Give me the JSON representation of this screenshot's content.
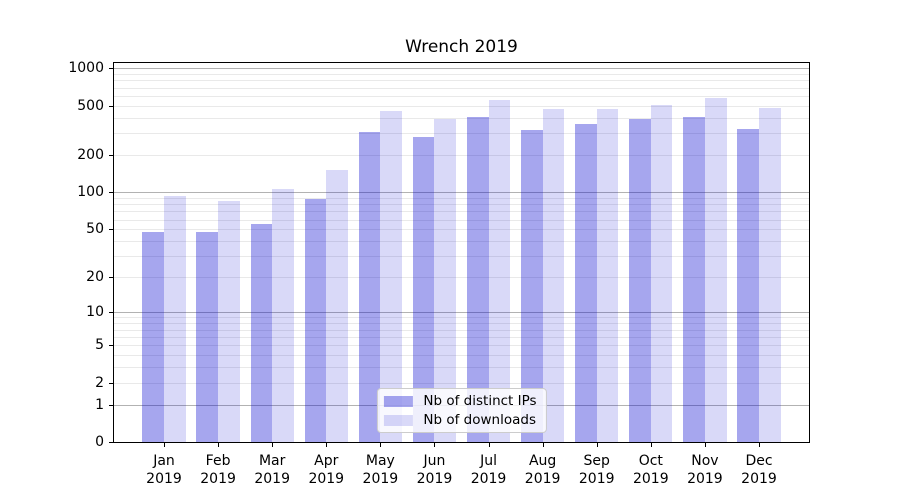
{
  "chart_data": {
    "type": "bar",
    "title": "Wrench 2019",
    "categories": [
      "Jan 2019",
      "Feb 2019",
      "Mar 2019",
      "Apr 2019",
      "May 2019",
      "Jun 2019",
      "Jul 2019",
      "Aug 2019",
      "Sep 2019",
      "Oct 2019",
      "Nov 2019",
      "Dec 2019"
    ],
    "series": [
      {
        "name": "Nb of distinct IPs",
        "color": "rgba(0,0,205,0.35)",
        "values": [
          48,
          48,
          55,
          88,
          310,
          280,
          410,
          320,
          360,
          390,
          410,
          325
        ]
      },
      {
        "name": "Nb of downloads",
        "color": "rgba(0,0,205,0.15)",
        "values": [
          93,
          85,
          107,
          151,
          455,
          395,
          555,
          470,
          475,
          505,
          580,
          480
        ]
      }
    ],
    "xlabel": "",
    "ylabel": "",
    "yscale": "log1p",
    "ylim": [
      0,
      1105
    ],
    "yticks": [
      0,
      1,
      2,
      5,
      10,
      20,
      50,
      100,
      200,
      500,
      1000
    ],
    "grid": {
      "major": [
        1,
        10,
        100,
        1000
      ],
      "minor": [
        2,
        3,
        4,
        5,
        6,
        7,
        8,
        9,
        20,
        30,
        40,
        50,
        60,
        70,
        80,
        90,
        200,
        300,
        400,
        500,
        600,
        700,
        800,
        900
      ]
    },
    "legend_position": "lower center",
    "colors": {
      "grid_major": "#b2b2b2",
      "grid_minor": "#e9e9e9",
      "spine": "#000000",
      "text": "#000000"
    }
  }
}
